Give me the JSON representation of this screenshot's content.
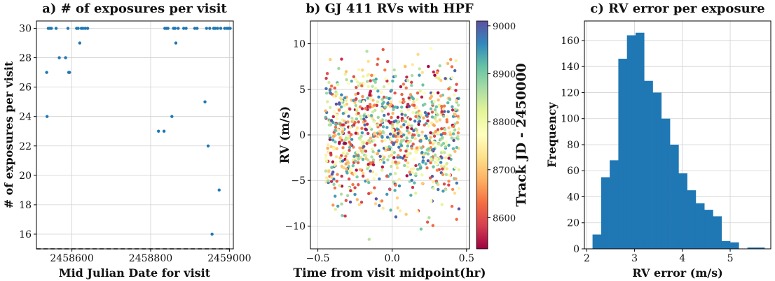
{
  "chart_data": [
    {
      "type": "scatter",
      "title": "a) # of exposures per visit",
      "xlabel": "Mid Julian Date for visit",
      "ylabel": "# of exposures per visit",
      "xlim": [
        2458510,
        2459010
      ],
      "ylim": [
        15,
        30.5
      ],
      "xticks": [
        2458600,
        2458800,
        2459000
      ],
      "yticks": [
        16,
        18,
        20,
        22,
        24,
        26,
        28,
        30
      ],
      "grid": true,
      "marker_color": "#1f77b4",
      "hline": {
        "y": 15,
        "style": "dashed",
        "color": "#000000"
      },
      "points": [
        [
          2458537,
          24
        ],
        [
          2458536,
          27
        ],
        [
          2458540,
          30
        ],
        [
          2458544,
          30
        ],
        [
          2458548,
          30
        ],
        [
          2458560,
          30
        ],
        [
          2458568,
          28
        ],
        [
          2458584,
          28
        ],
        [
          2458590,
          30
        ],
        [
          2458592,
          27
        ],
        [
          2458594,
          27
        ],
        [
          2458612,
          30
        ],
        [
          2458616,
          30
        ],
        [
          2458620,
          29
        ],
        [
          2458624,
          30
        ],
        [
          2458628,
          30
        ],
        [
          2458634,
          30
        ],
        [
          2458640,
          30
        ],
        [
          2458820,
          23
        ],
        [
          2458834,
          23
        ],
        [
          2458836,
          30
        ],
        [
          2458840,
          30
        ],
        [
          2458844,
          30
        ],
        [
          2458854,
          24
        ],
        [
          2458858,
          30
        ],
        [
          2458862,
          30
        ],
        [
          2458864,
          29
        ],
        [
          2458870,
          30
        ],
        [
          2458884,
          30
        ],
        [
          2458890,
          30
        ],
        [
          2458912,
          30
        ],
        [
          2458918,
          30
        ],
        [
          2458938,
          25
        ],
        [
          2458942,
          30
        ],
        [
          2458946,
          22
        ],
        [
          2458950,
          30
        ],
        [
          2458956,
          16
        ],
        [
          2458960,
          30
        ],
        [
          2458964,
          30
        ],
        [
          2458970,
          30
        ],
        [
          2458974,
          19
        ],
        [
          2458978,
          30
        ],
        [
          2458988,
          30
        ],
        [
          2458994,
          30
        ],
        [
          2458998,
          30
        ],
        [
          2459002,
          30
        ]
      ]
    },
    {
      "type": "scatter",
      "title": "b) GJ 411 RVs with HPF",
      "xlabel": "Time from visit midpoint(hr)",
      "ylabel": "RV (m/s)",
      "xlim": [
        -0.55,
        0.52
      ],
      "ylim": [
        -12.5,
        12.5
      ],
      "xticks": [
        -0.5,
        0.0,
        0.5
      ],
      "yticks": [
        -10,
        -5,
        0,
        5,
        10
      ],
      "xtick_labels": [
        "−0.5",
        "0.0",
        "0.5"
      ],
      "ytick_labels": [
        "−10",
        "−5",
        "0",
        "5",
        "10"
      ],
      "grid": true,
      "n_points": 1050,
      "x_range": [
        -0.45,
        0.45
      ],
      "y_distribution": {
        "mean": 0.0,
        "sd": 3.8
      },
      "color_range_jd": [
        8535,
        9010
      ],
      "colormap": "Spectral",
      "colorbar": {
        "label": "Track JD - 2450000",
        "range": [
          8535,
          9010
        ],
        "ticks": [
          8600,
          8700,
          8800,
          8900,
          9000
        ]
      }
    },
    {
      "type": "bar",
      "subtype": "histogram",
      "title": "c) RV error per exposure",
      "xlabel": "RV error (m/s)",
      "ylabel": "Frequency",
      "xlim": [
        1.95,
        5.85
      ],
      "ylim": [
        0,
        175
      ],
      "xticks": [
        2,
        3,
        4,
        5
      ],
      "yticks": [
        0,
        20,
        40,
        60,
        80,
        100,
        120,
        140,
        160
      ],
      "grid": true,
      "bar_color": "#1f77b4",
      "bin_edges": [
        2.12,
        2.3,
        2.48,
        2.66,
        2.84,
        3.02,
        3.2,
        3.38,
        3.56,
        3.74,
        3.92,
        4.1,
        4.28,
        4.46,
        4.64,
        4.82,
        5.0,
        5.18,
        5.36,
        5.54,
        5.72
      ],
      "counts": [
        11,
        55,
        68,
        146,
        164,
        166,
        129,
        120,
        100,
        80,
        58,
        45,
        35,
        30,
        25,
        6,
        5,
        0,
        1,
        1
      ]
    }
  ]
}
